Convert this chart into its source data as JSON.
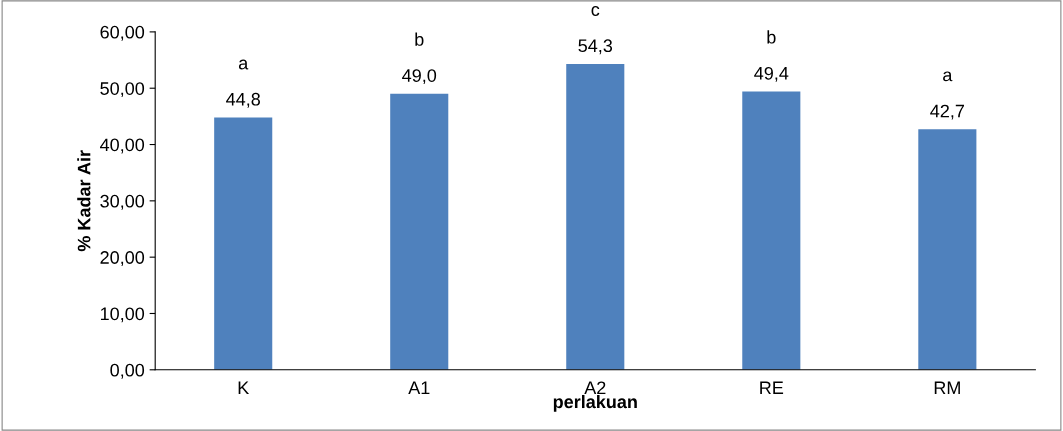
{
  "chart_data": {
    "type": "bar",
    "xlabel": "perlakuan",
    "ylabel": "% Kadar Air",
    "categories": [
      "K",
      "A1",
      "A2",
      "RE",
      "RM"
    ],
    "values": [
      44.8,
      49.0,
      54.3,
      49.4,
      42.7
    ],
    "value_labels": [
      "44,8",
      "49,0",
      "54,3",
      "49,4",
      "42,7"
    ],
    "color": "#4f81bd",
    "ylim": [
      0,
      60
    ],
    "yticks": [
      {
        "value": 0,
        "label": "0,00"
      },
      {
        "value": 10,
        "label": "10,00"
      },
      {
        "value": 20,
        "label": "20,00"
      },
      {
        "value": 30,
        "label": "30,00"
      },
      {
        "value": 40,
        "label": "40,00"
      },
      {
        "value": 50,
        "label": "50,00"
      },
      {
        "value": 60,
        "label": "60,00"
      }
    ],
    "annotations": [
      {
        "text": "a",
        "x": "K",
        "y": 44.8
      },
      {
        "text": "b",
        "x": "A1",
        "y": 49.0
      },
      {
        "text": "c",
        "x": "A2",
        "y": 54.3
      },
      {
        "text": "b",
        "x": "RE",
        "y": 49.4
      },
      {
        "text": "a",
        "x": "RM",
        "y": 42.7
      }
    ],
    "grid": false,
    "legend": false
  }
}
